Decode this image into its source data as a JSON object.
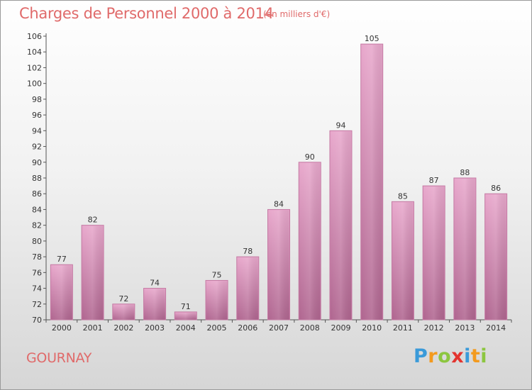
{
  "header": {
    "title": "Charges de Personnel 2000 à 2014",
    "subtitle": "(en milliers d'€)"
  },
  "footer": {
    "commune": "GOURNAY",
    "logo_letters": [
      {
        "char": "P",
        "color": "#3a9ad9"
      },
      {
        "char": "r",
        "color": "#f39a1e"
      },
      {
        "char": "o",
        "color": "#8cc63f"
      },
      {
        "char": "x",
        "color": "#e3342f"
      },
      {
        "char": "i",
        "color": "#3a9ad9"
      },
      {
        "char": "t",
        "color": "#f39a1e"
      },
      {
        "char": "i",
        "color": "#8cc63f"
      }
    ]
  },
  "colors": {
    "bar_top": "#e8a8cc",
    "bar_bottom": "#b06690",
    "bar_edge": "#c47aa3",
    "title": "#e06a6a"
  },
  "chart_data": {
    "type": "bar",
    "title": "Charges de Personnel 2000 à 2014",
    "subtitle": "(en milliers d'€)",
    "xlabel": "",
    "ylabel": "",
    "ylim": [
      70,
      106
    ],
    "y_ticks": [
      70,
      72,
      74,
      76,
      78,
      80,
      82,
      84,
      86,
      88,
      90,
      92,
      94,
      96,
      98,
      100,
      102,
      104,
      106
    ],
    "grid": false,
    "categories": [
      "2000",
      "2001",
      "2002",
      "2003",
      "2004",
      "2005",
      "2006",
      "2007",
      "2008",
      "2009",
      "2010",
      "2011",
      "2012",
      "2013",
      "2014"
    ],
    "values": [
      77,
      82,
      72,
      74,
      71,
      75,
      78,
      84,
      90,
      94,
      105,
      85,
      87,
      88,
      86
    ]
  }
}
